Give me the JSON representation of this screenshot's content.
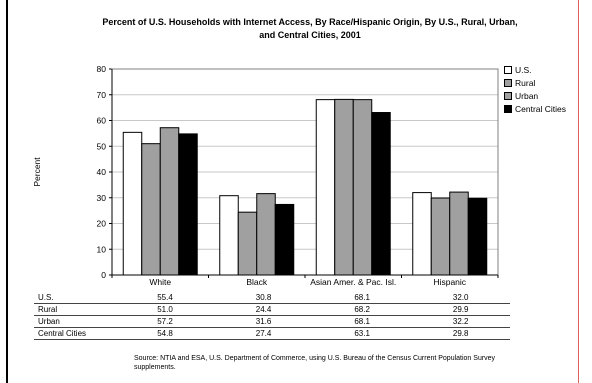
{
  "chart_data": {
    "type": "bar",
    "title": "Percent of U.S. Households with Internet Access, By Race/Hispanic Origin, By U.S., Rural, Urban, and Central Cities, 2001",
    "xlabel": "",
    "ylabel": "Percent",
    "ylim": [
      0,
      80
    ],
    "yticks": [
      "0",
      "10",
      "20",
      "30",
      "40",
      "50",
      "60",
      "70",
      "80"
    ],
    "categories": [
      "White",
      "Black",
      "Asian Amer. & Pac. Isl.",
      "Hispanic"
    ],
    "series": [
      {
        "name": "U.S.",
        "color": "#ffffff",
        "values": [
          55.4,
          30.8,
          68.1,
          32.0
        ],
        "labels": [
          "55.4",
          "30.8",
          "68.1",
          "32.0"
        ]
      },
      {
        "name": "Rural",
        "color": "#a0a0a0",
        "values": [
          51.0,
          24.4,
          68.2,
          29.9
        ],
        "labels": [
          "51.0",
          "24.4",
          "68.2",
          "29.9"
        ]
      },
      {
        "name": "Urban",
        "color": "#a0a0a0",
        "values": [
          57.2,
          31.6,
          68.1,
          32.2
        ],
        "labels": [
          "57.2",
          "31.6",
          "68.1",
          "32.2"
        ]
      },
      {
        "name": "Central Cities",
        "color": "#000000",
        "values": [
          54.8,
          27.4,
          63.1,
          29.8
        ],
        "labels": [
          "54.8",
          "27.4",
          "63.1",
          "29.8"
        ]
      }
    ],
    "legend_position": "right",
    "grid": true,
    "source": "Source:  NTIA and ESA, U.S. Department of Commerce, using U.S. Bureau of the Census Current Population Survey supplements."
  }
}
